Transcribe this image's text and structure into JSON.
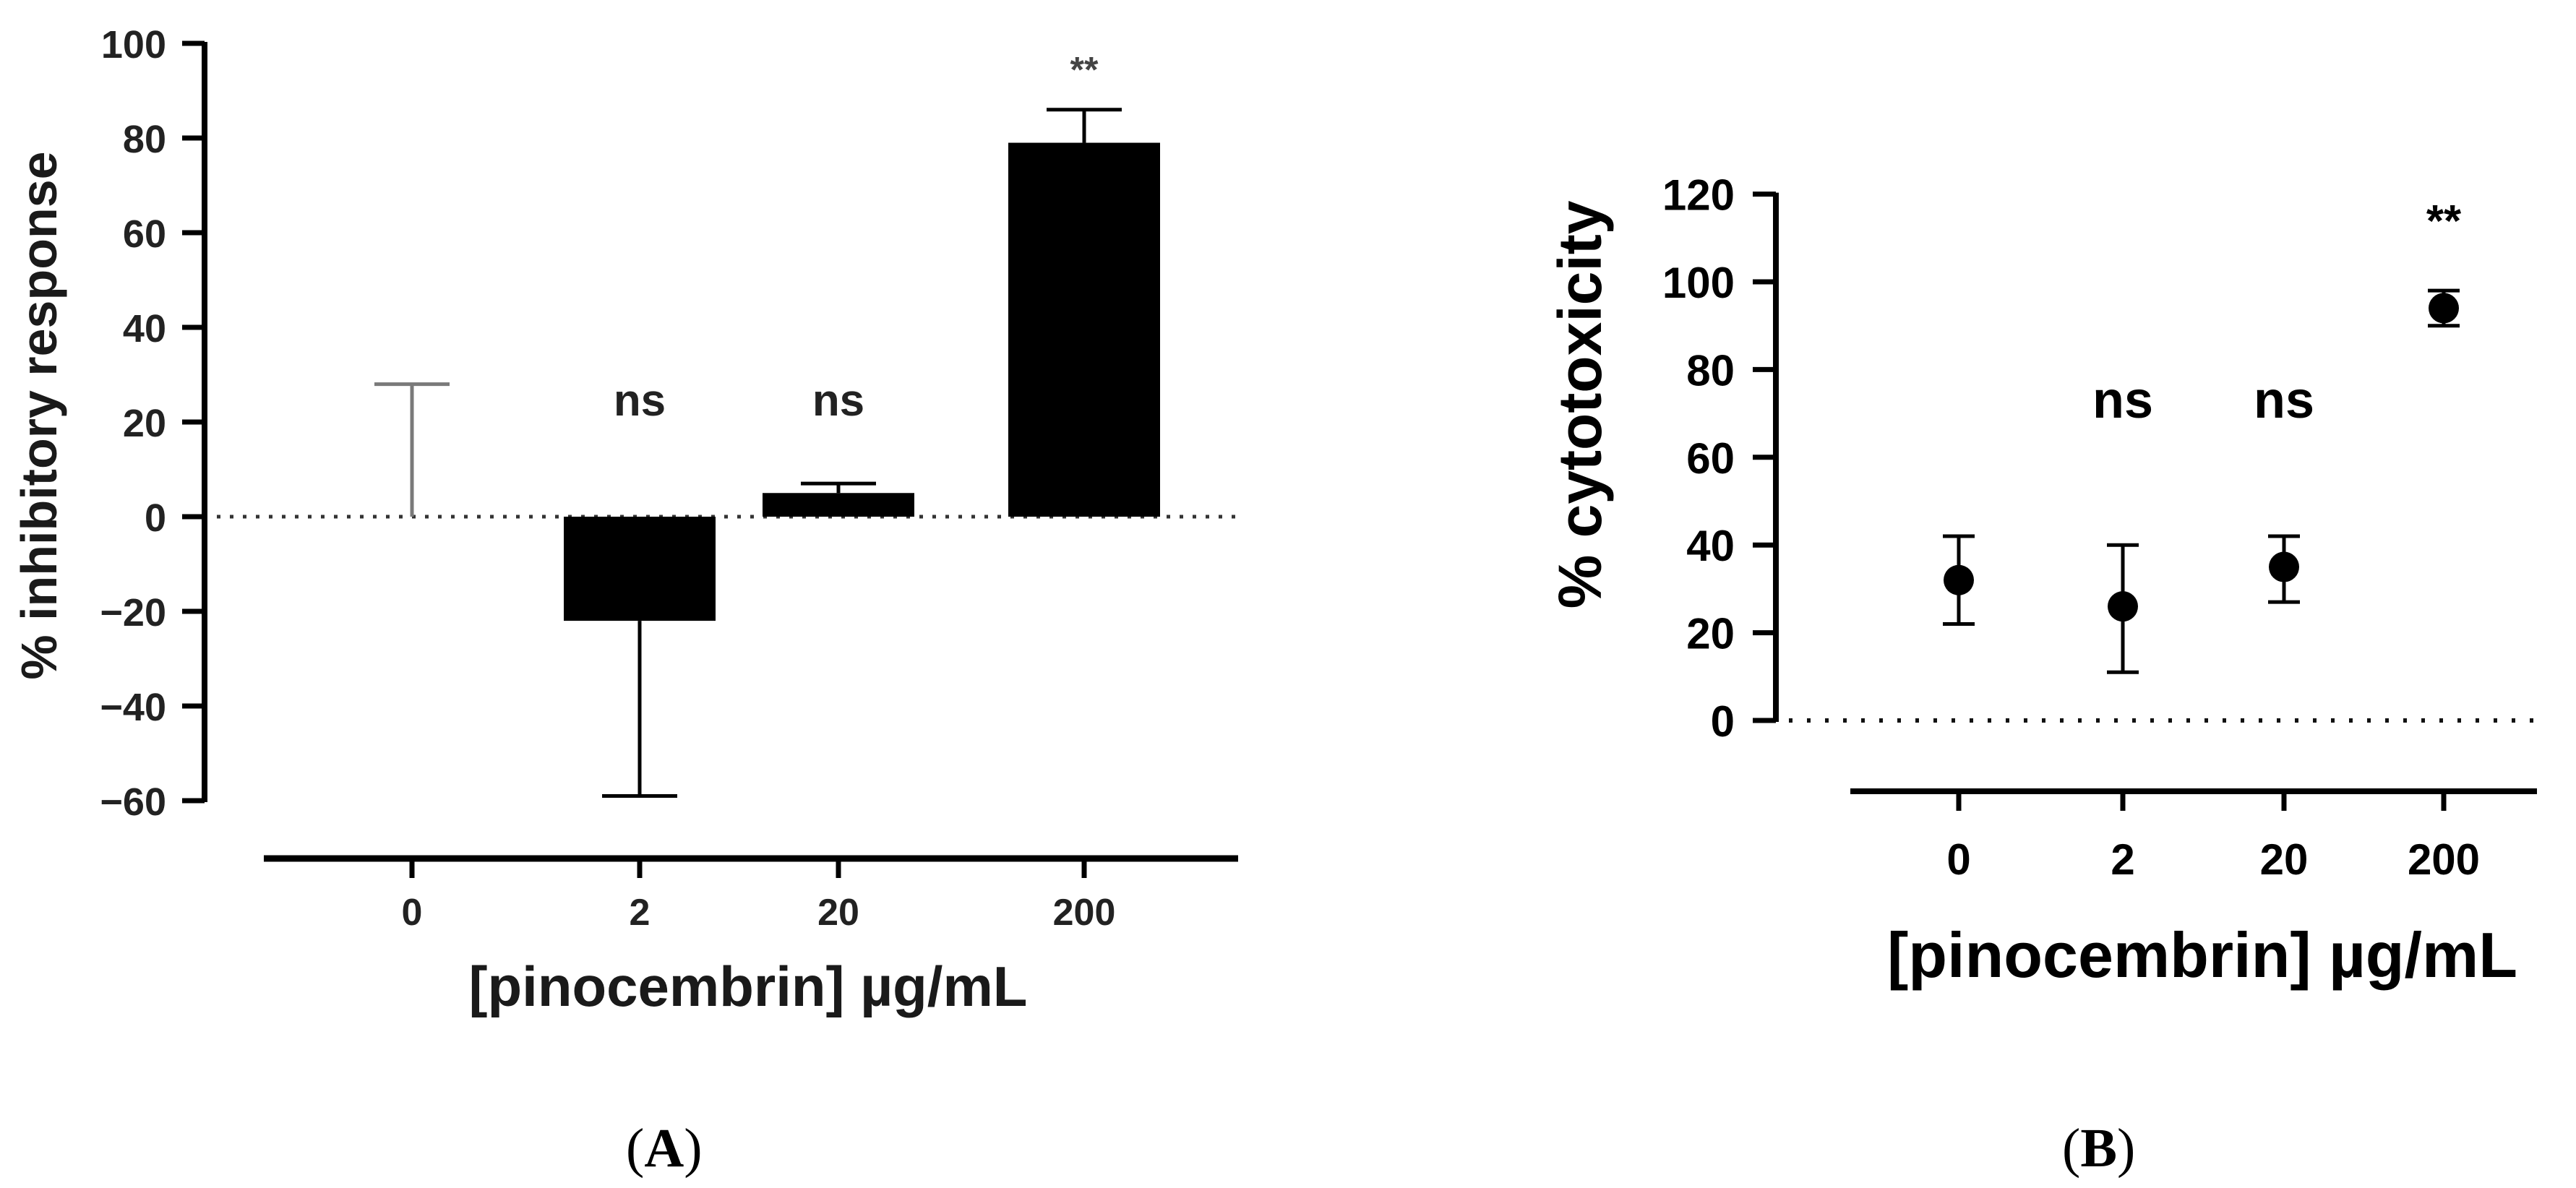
{
  "figure": {
    "panels": [
      {
        "label_open": "(",
        "label_letter": "A",
        "label_close": ")"
      },
      {
        "label_open": "(",
        "label_letter": "B",
        "label_close": ")"
      }
    ]
  },
  "chart_data": [
    {
      "type": "bar",
      "panel": "A",
      "title": "",
      "xlabel": "[pinocembrin] µg/mL",
      "ylabel": "% inhibitory response",
      "categories": [
        "0",
        "2",
        "20",
        "200"
      ],
      "values": [
        0,
        -22,
        5,
        79
      ],
      "error_bars": {
        "0": {
          "direction": "up",
          "value": 28
        },
        "2": {
          "direction": "down",
          "value": -59
        },
        "20": {
          "direction": "up",
          "value": 7
        },
        "200": {
          "direction": "up",
          "value": 86
        }
      },
      "error_values": [
        28,
        -59,
        7,
        86
      ],
      "error_direction": [
        "up",
        "down",
        "up",
        "up"
      ],
      "annotations": [
        "",
        "ns",
        "ns",
        "**"
      ],
      "ylim": [
        -60,
        100
      ],
      "yticks": [
        100,
        80,
        60,
        40,
        20,
        0,
        -20,
        -40,
        -60
      ],
      "ytick_labels": [
        "100",
        "80",
        "60",
        "40",
        "20",
        "0",
        "−20",
        "−40",
        "−60"
      ],
      "reference_line": 0,
      "reference_line_style": "dotted",
      "grid": false,
      "colors": {
        "bar": "#000000",
        "control_errorbar": "#7a7a7a"
      }
    },
    {
      "type": "scatter",
      "panel": "B",
      "title": "",
      "xlabel": "[pinocembrin] µg/mL",
      "ylabel": "% cytotoxicity",
      "categories": [
        "0",
        "2",
        "20",
        "200"
      ],
      "values": [
        32,
        26,
        35,
        94
      ],
      "error_low": [
        22,
        11,
        27,
        90
      ],
      "error_high": [
        42,
        40,
        42,
        98
      ],
      "annotations": [
        "",
        "ns",
        "ns",
        "**"
      ],
      "ylim": [
        0,
        120
      ],
      "yticks": [
        0,
        20,
        40,
        60,
        80,
        100,
        120
      ],
      "ytick_labels": [
        "0",
        "20",
        "40",
        "60",
        "80",
        "100",
        "120"
      ],
      "reference_line": 0,
      "reference_line_style": "dotted",
      "grid": false,
      "colors": {
        "marker": "#000000"
      }
    }
  ]
}
